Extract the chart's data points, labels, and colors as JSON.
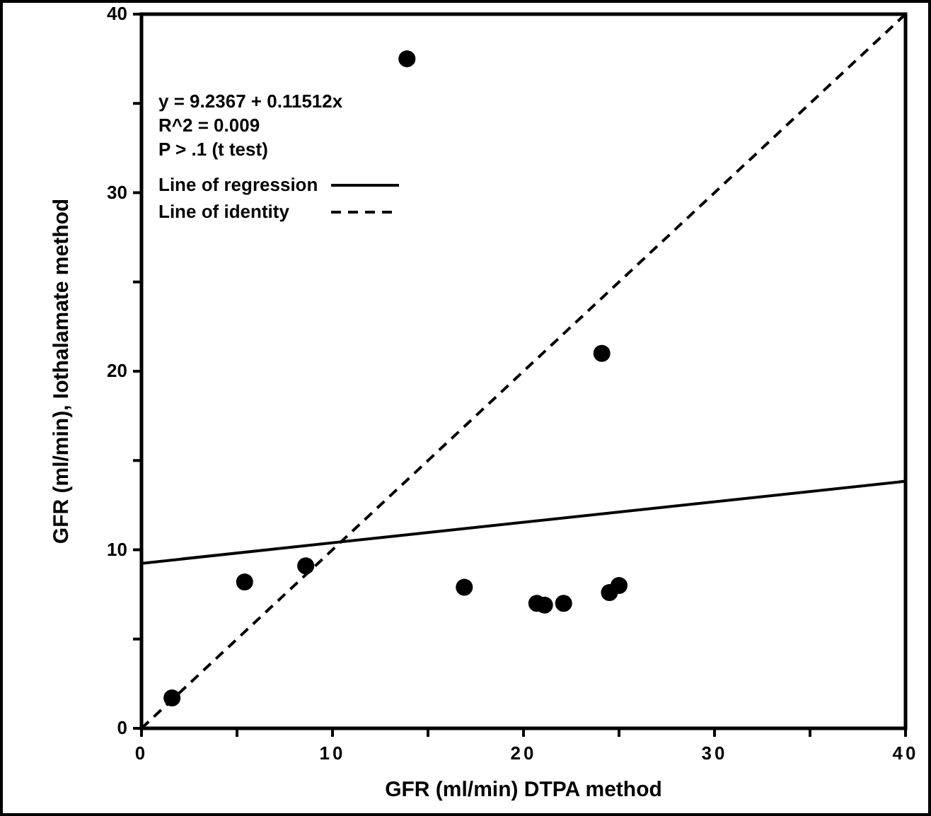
{
  "chart_data": {
    "type": "scatter",
    "xlabel": "GFR (ml/min) DTPA method",
    "ylabel": "GFR (ml/min), Iothalamate method",
    "xlim": [
      0,
      40
    ],
    "ylim": [
      0,
      40
    ],
    "xticks": [
      0,
      {
        "value": 5,
        "label": null
      },
      10,
      {
        "value": 15,
        "label": null
      },
      20,
      {
        "value": 25,
        "label": null
      },
      30,
      {
        "value": 35,
        "label": null
      },
      40
    ],
    "yticks": [
      0,
      {
        "value": 5,
        "label": null
      },
      10,
      {
        "value": 15,
        "label": null
      },
      20,
      {
        "value": 25,
        "label": null
      },
      30,
      {
        "value": 35,
        "label": null
      },
      40
    ],
    "grid": false,
    "legend": "top left",
    "marker": "circle",
    "annotations": [
      "y = 9.2367 + 0.11512x",
      "R^2 = 0.009",
      "P > .1 (t test)"
    ],
    "series": [
      {
        "color": "#000000",
        "x": [
          1.6,
          5.4,
          8.6,
          13.9,
          16.9,
          20.7,
          21.1,
          22.1,
          24.1,
          24.5,
          25.0
        ],
        "values": [
          1.7,
          8.2,
          9.1,
          37.5,
          7.9,
          7.0,
          6.9,
          7.0,
          21.0,
          7.6,
          8.0
        ]
      },
      {
        "type": "line",
        "name": "Line of regression",
        "color": "#000000",
        "line_style": "solid",
        "marker": "none",
        "x": [
          0,
          40
        ],
        "values": [
          9.24,
          13.84
        ]
      },
      {
        "type": "line",
        "name": "Line of identity",
        "color": "#000000",
        "line_style": "dashed",
        "marker": "none",
        "x": [
          0,
          40
        ],
        "values": [
          0,
          40
        ]
      }
    ]
  }
}
